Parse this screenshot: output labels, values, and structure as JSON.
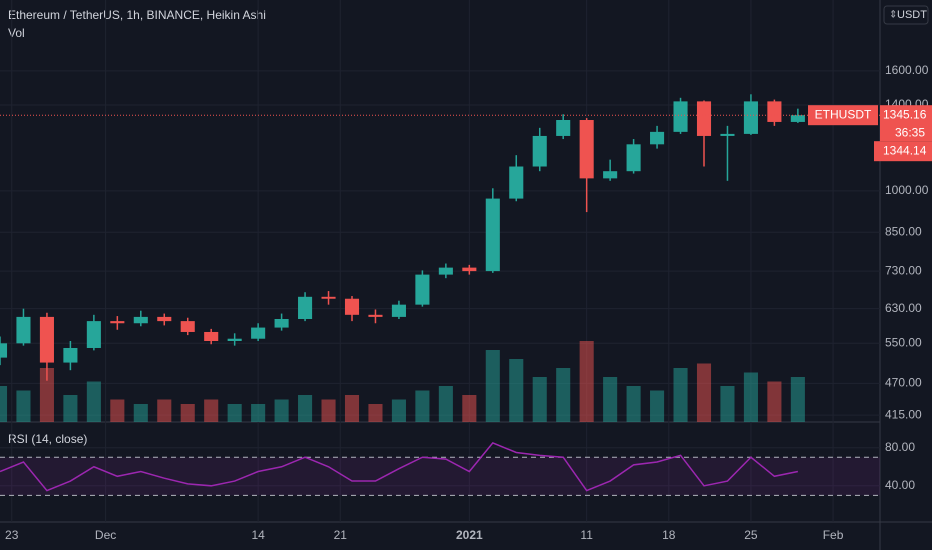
{
  "header": {
    "title": "Ethereum / TetherUS, 1h, BINANCE, Heikin Ashi",
    "volume_label": "Vol",
    "currency": "USDT"
  },
  "chart_data": {
    "type": "candlestick",
    "x": [
      0,
      2,
      4,
      6,
      8,
      10,
      12,
      14,
      16,
      18,
      20,
      22,
      24,
      26,
      28,
      30,
      32,
      34,
      36,
      38,
      40,
      42,
      44,
      46,
      48,
      50,
      52,
      54,
      56,
      58,
      60,
      62,
      64,
      66,
      68
    ],
    "open": [
      520,
      550,
      610,
      510,
      540,
      600,
      595,
      610,
      600,
      575,
      555,
      560,
      585,
      605,
      660,
      655,
      615,
      610,
      640,
      720,
      740,
      730,
      970,
      1100,
      1240,
      1320,
      1050,
      1080,
      1200,
      1260,
      1420,
      1240,
      1250,
      1420,
      1310
    ],
    "high": [
      565,
      630,
      620,
      555,
      615,
      612,
      625,
      618,
      608,
      582,
      572,
      595,
      618,
      672,
      675,
      662,
      628,
      650,
      732,
      752,
      748,
      1010,
      1150,
      1280,
      1350,
      1330,
      1130,
      1225,
      1290,
      1440,
      1425,
      1290,
      1460,
      1430,
      1380
    ],
    "low": [
      505,
      545,
      475,
      495,
      535,
      580,
      588,
      590,
      568,
      548,
      545,
      555,
      578,
      600,
      640,
      600,
      595,
      605,
      635,
      710,
      720,
      725,
      960,
      1080,
      1225,
      920,
      1040,
      1070,
      1180,
      1250,
      1100,
      1040,
      1245,
      1290,
      1305
    ],
    "close": [
      550,
      610,
      510,
      540,
      600,
      595,
      610,
      600,
      575,
      555,
      560,
      585,
      605,
      660,
      655,
      615,
      610,
      640,
      720,
      740,
      730,
      970,
      1100,
      1240,
      1320,
      1050,
      1080,
      1200,
      1260,
      1420,
      1240,
      1250,
      1420,
      1310,
      1345.16
    ],
    "up_color": "#26a69a",
    "down_color": "#ef5350",
    "xlim": [
      0,
      75
    ],
    "xticks": [
      {
        "value": 1,
        "label": "23"
      },
      {
        "value": 9,
        "label": "Dec"
      },
      {
        "value": 22,
        "label": "14"
      },
      {
        "value": 29,
        "label": "21"
      },
      {
        "value": 40,
        "label": "2021"
      },
      {
        "value": 50,
        "label": "11"
      },
      {
        "value": 57,
        "label": "18"
      },
      {
        "value": 64,
        "label": "25"
      },
      {
        "value": 71,
        "label": "Feb"
      }
    ],
    "ylim": [
      404,
      2113
    ],
    "log_scale": true,
    "yticks": [
      {
        "value": 415,
        "label": "415.00"
      },
      {
        "value": 470,
        "label": "470.00"
      },
      {
        "value": 550,
        "label": "550.00"
      },
      {
        "value": 630,
        "label": "630.00"
      },
      {
        "value": 730,
        "label": "730.00"
      },
      {
        "value": 850,
        "label": "850.00"
      },
      {
        "value": 1000,
        "label": "1000.00"
      },
      {
        "value": 1400,
        "label": "1400.00"
      },
      {
        "value": 1600,
        "label": "1600.00"
      }
    ],
    "grid": true,
    "last_price": {
      "symbol": "ETHUSDT",
      "value": 1345.16,
      "countdown": "36:35",
      "second_value": 1344.14
    },
    "volume": {
      "values": [
        40,
        35,
        60,
        30,
        45,
        25,
        20,
        25,
        20,
        25,
        20,
        20,
        25,
        30,
        25,
        30,
        20,
        25,
        35,
        40,
        30,
        80,
        70,
        50,
        60,
        90,
        50,
        40,
        35,
        60,
        65,
        40,
        55,
        45,
        50
      ]
    },
    "rsi": {
      "title": "RSI (14, close)",
      "color": "#9c27b0",
      "values": [
        55,
        65,
        35,
        45,
        60,
        50,
        55,
        48,
        42,
        40,
        45,
        55,
        60,
        70,
        60,
        45,
        45,
        58,
        70,
        68,
        55,
        85,
        75,
        72,
        70,
        35,
        45,
        62,
        65,
        72,
        40,
        45,
        70,
        50,
        55
      ],
      "ylim": [
        2,
        107
      ],
      "yticks": [
        {
          "value": 80,
          "label": "80.00"
        },
        {
          "value": 40,
          "label": "40.00"
        }
      ],
      "bands": [
        30,
        70
      ]
    }
  }
}
